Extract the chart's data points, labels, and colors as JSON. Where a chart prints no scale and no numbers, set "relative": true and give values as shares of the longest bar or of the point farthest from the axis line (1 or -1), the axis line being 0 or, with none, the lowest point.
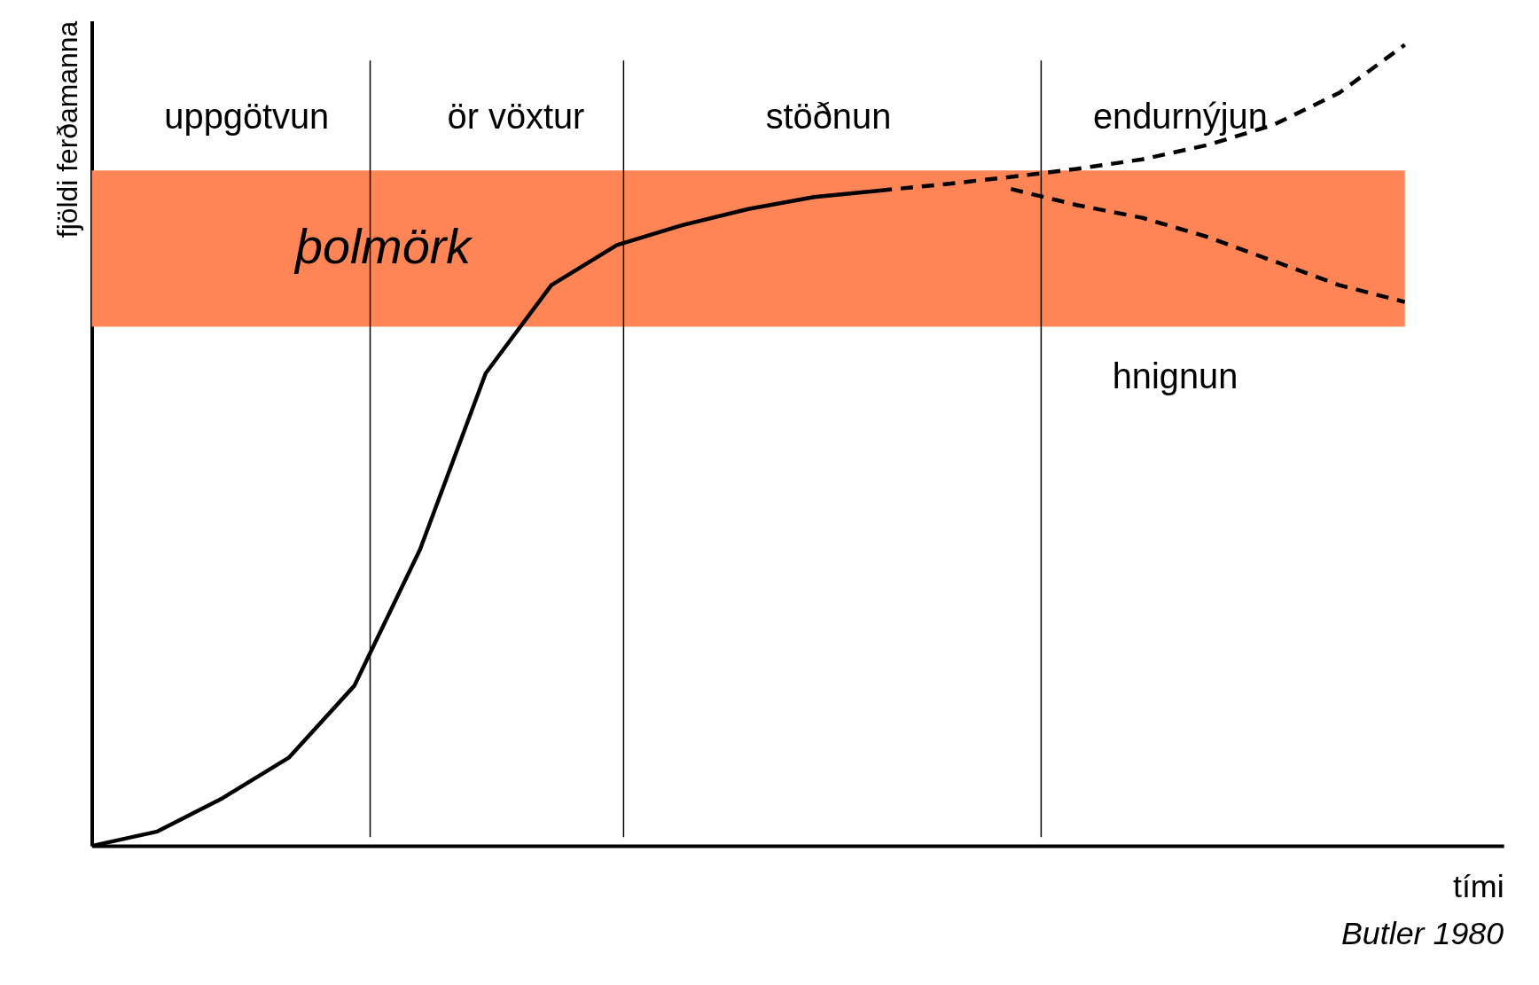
{
  "chart_data": {
    "type": "line",
    "relative": true,
    "xlabel": "tími",
    "ylabel": "fjöldi ferðamanna",
    "grid": false,
    "marker": "none",
    "categories": [
      null,
      null,
      null,
      null,
      null,
      null,
      null,
      null,
      null,
      null,
      null,
      null,
      null,
      null,
      null,
      null,
      null,
      null,
      null,
      null,
      null
    ],
    "series": [
      {
        "color": "#000000",
        "line_style": "solid",
        "values": [
          0,
          0.018,
          0.06,
          0.11,
          0.2,
          0.37,
          0.59,
          0.7,
          0.75,
          0.775,
          0.795,
          0.81,
          0.818,
          null,
          null,
          null,
          null,
          null,
          null,
          null,
          null
        ]
      },
      {
        "color": "#000000",
        "line_style": "dashed",
        "values": [
          null,
          null,
          null,
          null,
          null,
          null,
          null,
          null,
          null,
          null,
          null,
          null,
          0.818,
          0.826,
          0.835,
          0.845,
          0.857,
          0.875,
          0.9,
          0.94,
          1.0
        ]
      },
      {
        "color": "#000000",
        "line_style": "dashed",
        "values": [
          null,
          null,
          null,
          null,
          null,
          null,
          null,
          null,
          null,
          null,
          null,
          null,
          null,
          null,
          0.82,
          0.8,
          0.784,
          0.76,
          0.73,
          0.7,
          0.679
        ]
      }
    ],
    "bands": [
      {
        "axis": "y",
        "from": 0.648,
        "to": 0.843,
        "label": "þolmörk",
        "color": "#ff8556"
      }
    ],
    "annotations": [
      "uppgötvun",
      "ör vöxtur",
      "stöðnun",
      "endurnýjun",
      "hnignun",
      "Butler 1980"
    ]
  }
}
